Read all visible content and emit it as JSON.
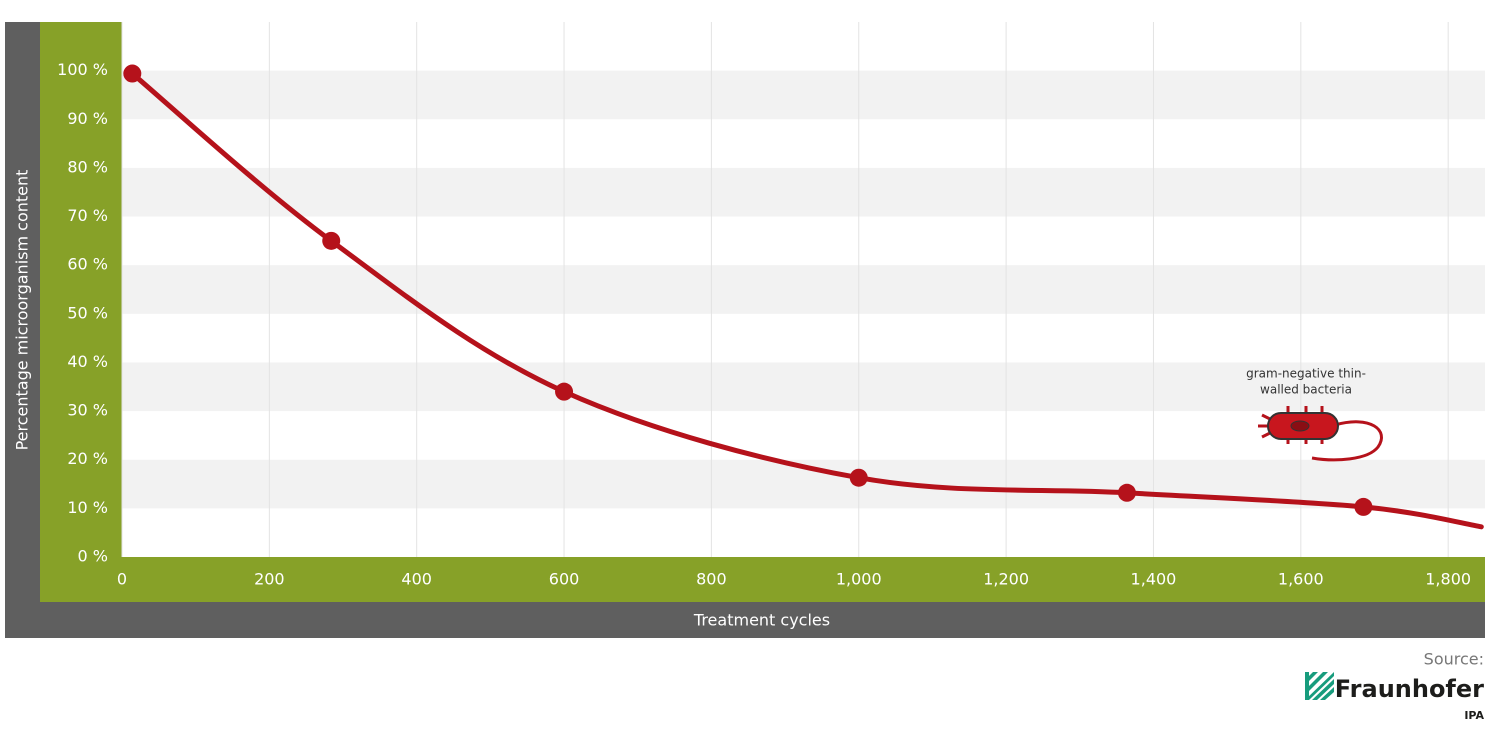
{
  "chart_data": {
    "type": "line",
    "x_label": "Treatment cycles",
    "y_label": "Percentage microorganism content",
    "xlim": [
      0,
      1850
    ],
    "ylim": [
      0,
      110
    ],
    "xticks": [
      0,
      200,
      400,
      600,
      800,
      {
        "value": 1000,
        "label": "1,000"
      },
      {
        "value": 1200,
        "label": "1,200"
      },
      {
        "value": 1400,
        "label": "1,400"
      },
      {
        "value": 1600,
        "label": "1,600"
      },
      {
        "value": 1800,
        "label": "1,800"
      }
    ],
    "yticks": [
      {
        "value": 0,
        "label": "0 %"
      },
      {
        "value": 10,
        "label": "10 %"
      },
      {
        "value": 20,
        "label": "20 %"
      },
      {
        "value": 30,
        "label": "30 %"
      },
      {
        "value": 40,
        "label": "40 %"
      },
      {
        "value": 50,
        "label": "50 %"
      },
      {
        "value": 60,
        "label": "60 %"
      },
      {
        "value": 70,
        "label": "70 %"
      },
      {
        "value": 80,
        "label": "80 %"
      },
      {
        "value": 90,
        "label": "90 %"
      },
      {
        "value": 100,
        "label": "100 %"
      }
    ],
    "grid": true,
    "series": [
      {
        "color": "#b5121b",
        "x": [
          14,
          284,
          600,
          1000,
          1364,
          1685,
          1845
        ],
        "values": [
          99.4,
          65,
          34,
          16.3,
          13.2,
          10.3,
          6.2
        ],
        "markers": [
          true,
          true,
          true,
          true,
          true,
          true,
          false
        ]
      }
    ],
    "annotation": [
      "gram-negative thin-",
      "walled bacteria"
    ],
    "source": {
      "label": "Source:",
      "name": "Fraunhofer",
      "unit": "IPA"
    }
  }
}
